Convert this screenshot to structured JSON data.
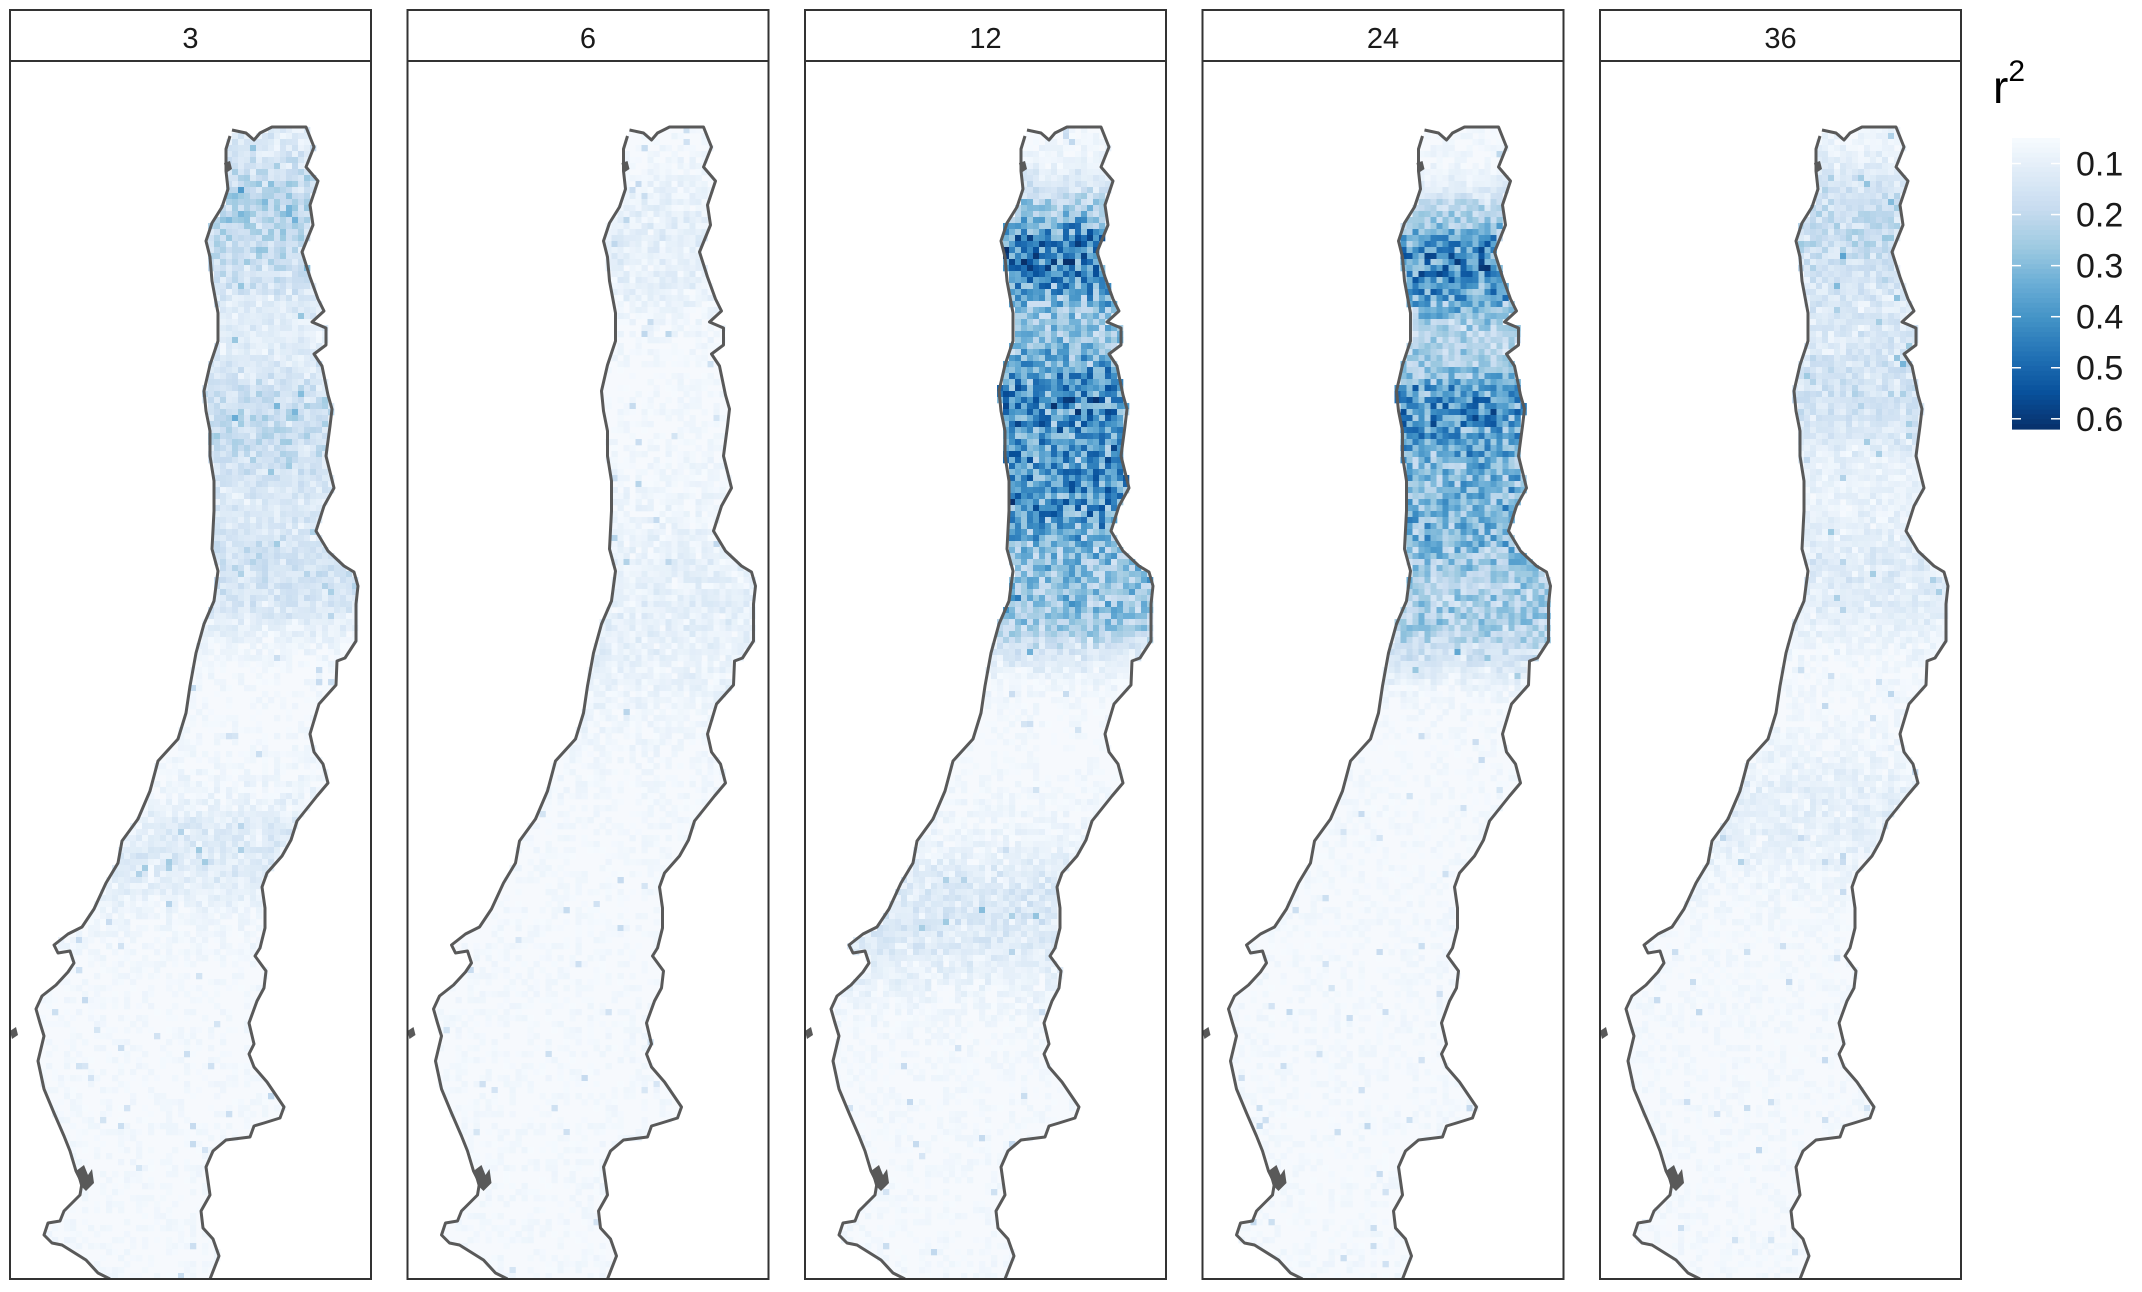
{
  "figure": {
    "panels": [
      {
        "label": "3",
        "hotspots": [
          {
            "t": 0.13,
            "spread": 0.07,
            "amp": 0.25
          },
          {
            "t": 0.3,
            "spread": 0.06,
            "amp": 0.2
          },
          {
            "t": 0.42,
            "spread": 0.05,
            "amp": 0.16
          },
          {
            "t": 0.65,
            "spread": 0.05,
            "amp": 0.1
          }
        ]
      },
      {
        "label": "6",
        "hotspots": [
          {
            "t": 0.15,
            "spread": 0.06,
            "amp": 0.08
          },
          {
            "t": 0.45,
            "spread": 0.1,
            "amp": 0.07
          }
        ]
      },
      {
        "label": "12",
        "hotspots": [
          {
            "t": 0.16,
            "spread": 0.05,
            "amp": 0.58
          },
          {
            "t": 0.28,
            "spread": 0.06,
            "amp": 0.52
          },
          {
            "t": 0.37,
            "spread": 0.05,
            "amp": 0.45
          },
          {
            "t": 0.45,
            "spread": 0.04,
            "amp": 0.3
          },
          {
            "t": 0.7,
            "spread": 0.06,
            "amp": 0.12
          }
        ]
      },
      {
        "label": "24",
        "hotspots": [
          {
            "t": 0.17,
            "spread": 0.05,
            "amp": 0.55
          },
          {
            "t": 0.29,
            "spread": 0.05,
            "amp": 0.5
          },
          {
            "t": 0.38,
            "spread": 0.05,
            "amp": 0.38
          },
          {
            "t": 0.46,
            "spread": 0.04,
            "amp": 0.25
          }
        ]
      },
      {
        "label": "36",
        "hotspots": [
          {
            "t": 0.14,
            "spread": 0.06,
            "amp": 0.2
          },
          {
            "t": 0.27,
            "spread": 0.06,
            "amp": 0.16
          },
          {
            "t": 0.42,
            "spread": 0.06,
            "amp": 0.1
          },
          {
            "t": 0.62,
            "spread": 0.06,
            "amp": 0.07
          }
        ]
      }
    ],
    "legend": {
      "title": "r",
      "title_superscript": "2",
      "ticks": [
        "0.1",
        "0.2",
        "0.3",
        "0.4",
        "0.5",
        "0.6"
      ],
      "range": [
        0.05,
        0.62
      ],
      "colors": [
        "#f7fbff",
        "#deebf7",
        "#c6dbef",
        "#9ecae1",
        "#6baed6",
        "#4292c6",
        "#2171b5",
        "#08519c",
        "#08306b"
      ]
    },
    "outline_color": "#595959"
  }
}
